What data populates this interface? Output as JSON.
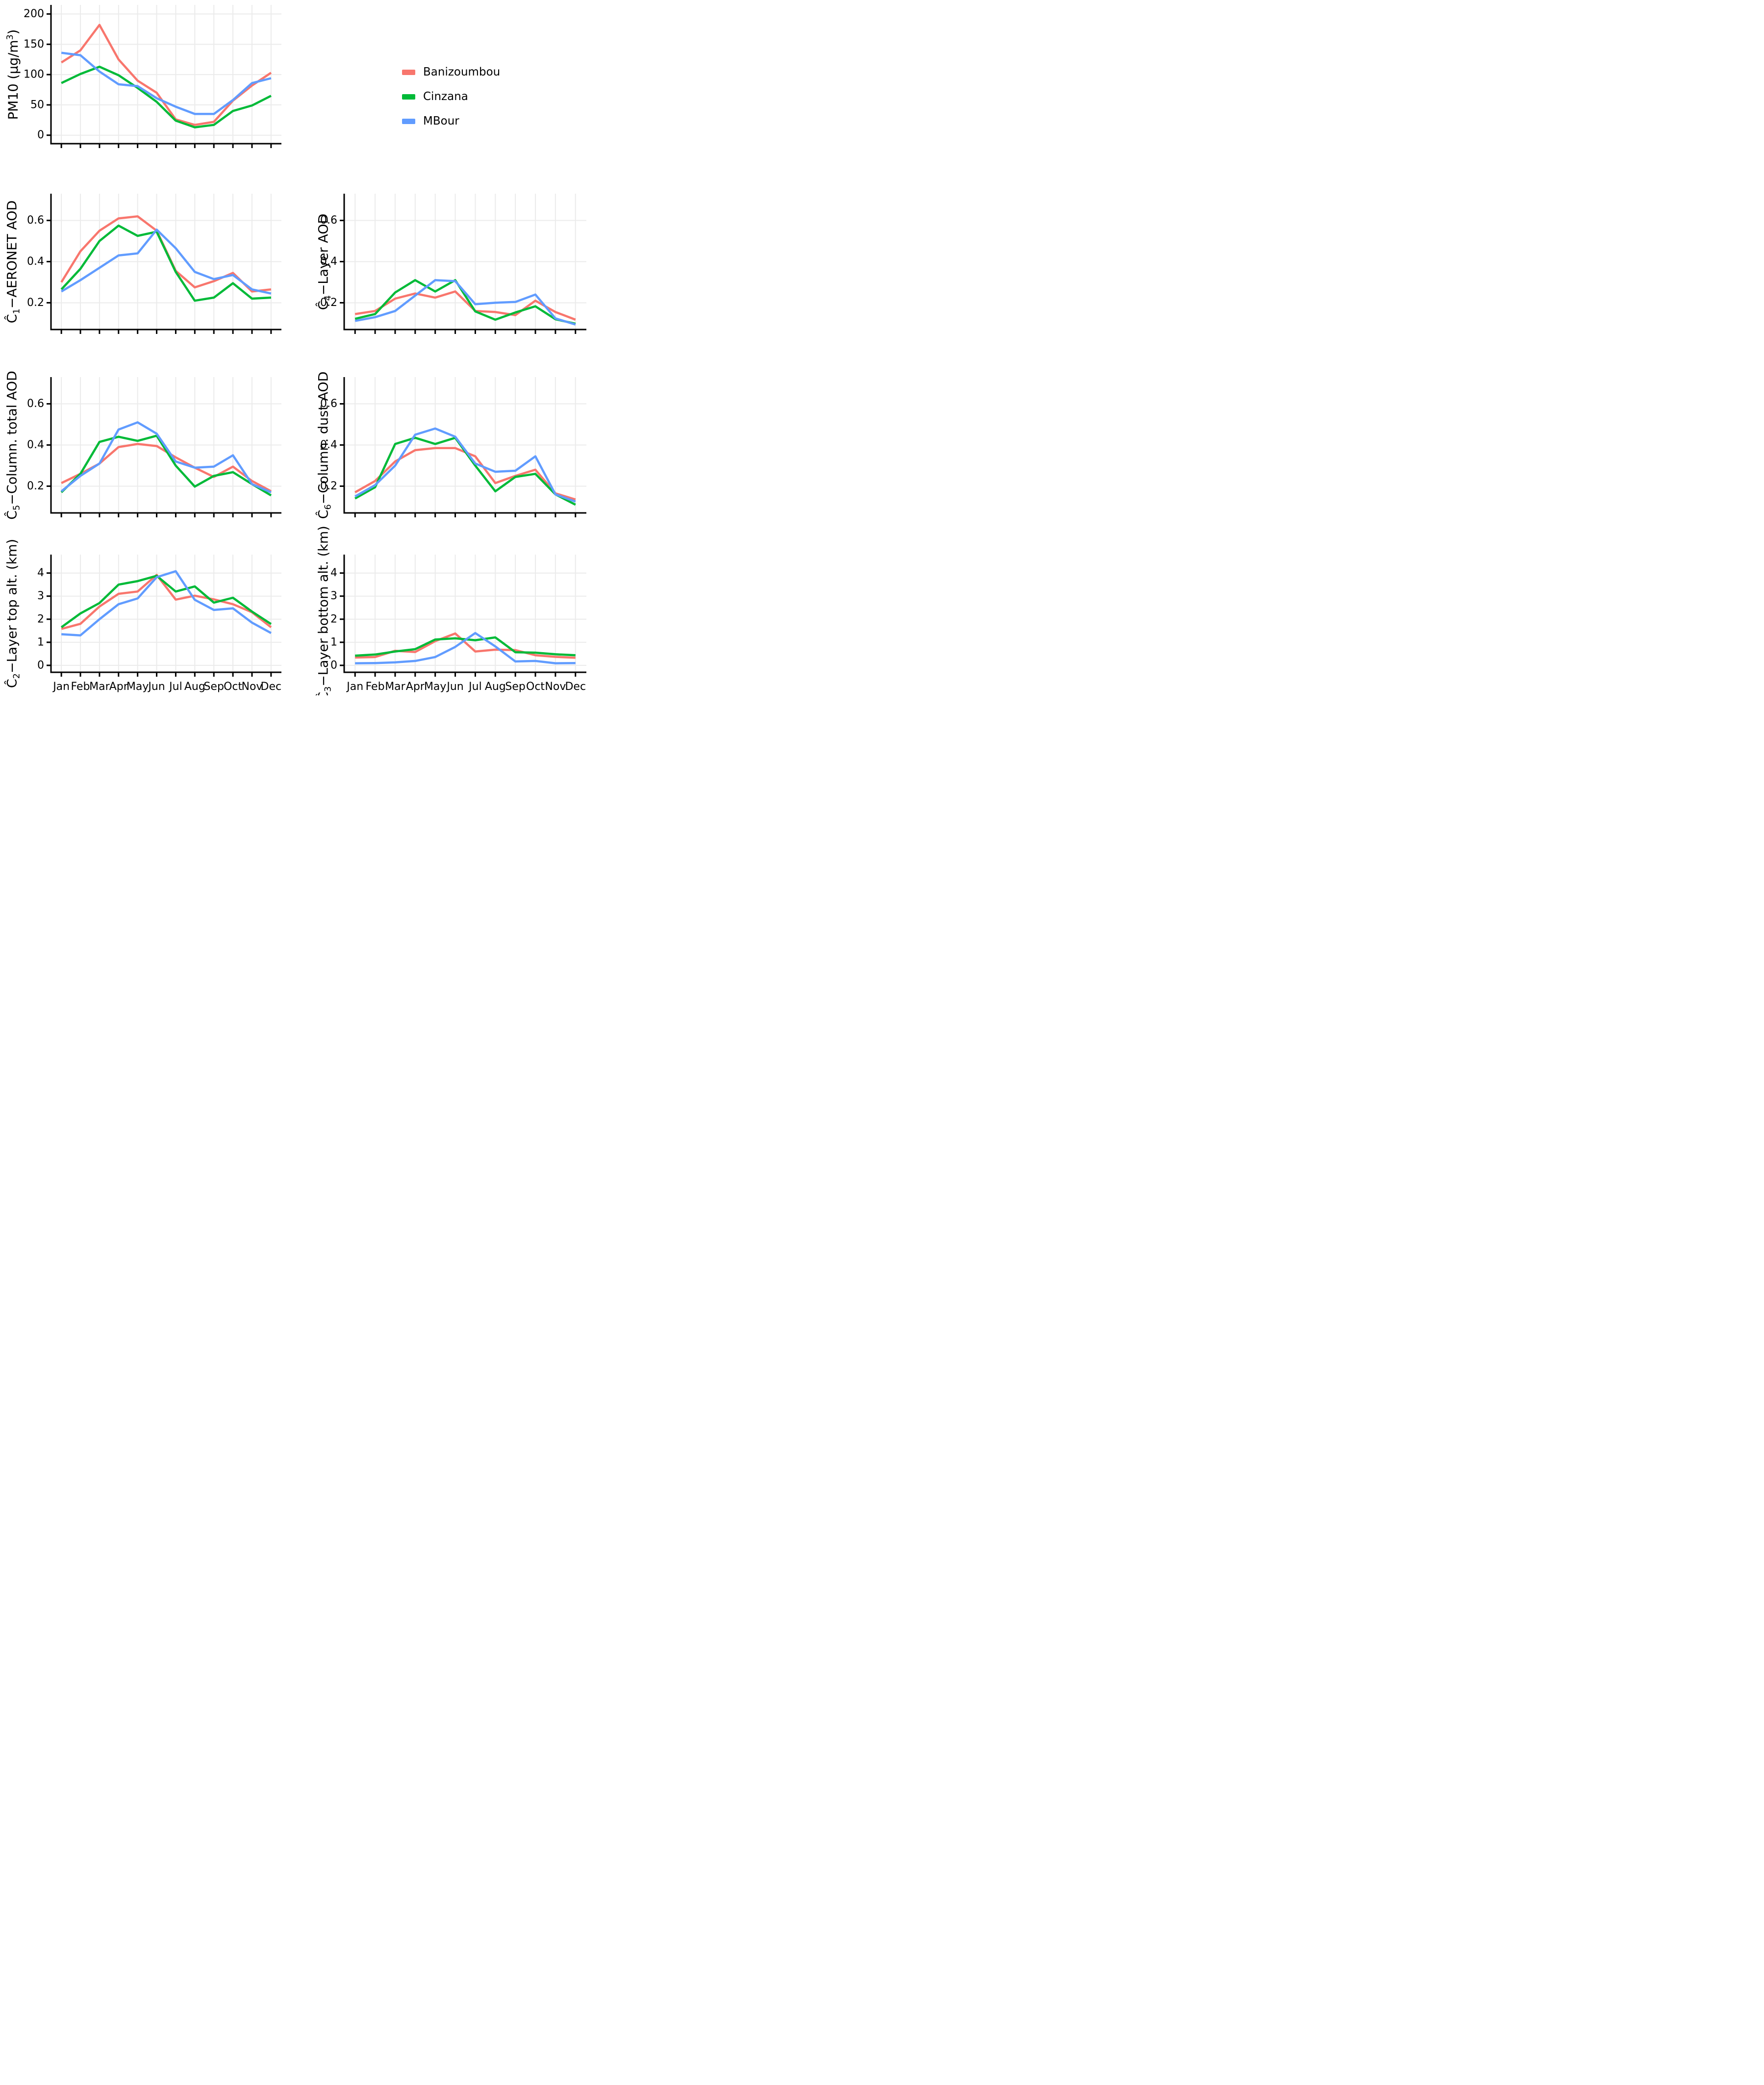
{
  "page": {
    "background": "#FFFFFF"
  },
  "months": [
    "Jan",
    "Feb",
    "Mar",
    "Apr",
    "May",
    "Jun",
    "Jul",
    "Aug",
    "Sep",
    "Oct",
    "Nov",
    "Dec"
  ],
  "legend": {
    "position": "top-right",
    "entries": [
      {
        "label": "Banizoumbou",
        "color": "#F8766D"
      },
      {
        "label": "Cinzana",
        "color": "#00BA38"
      },
      {
        "label": "MBour",
        "color": "#619CFF"
      }
    ]
  },
  "chart_data": {
    "type": "line",
    "x_categories": [
      "Jan",
      "Feb",
      "Mar",
      "Apr",
      "May",
      "Jun",
      "Jul",
      "Aug",
      "Sep",
      "Oct",
      "Nov",
      "Dec"
    ],
    "grid": "on",
    "panels": [
      {
        "id": "pm10",
        "ylabel_text": "PM10 (µg/m³)",
        "ylabel": {
          "segments": [
            {
              "text": "PM10 (µg/m"
            },
            {
              "text": "3",
              "sup": true
            },
            {
              "text": ")"
            }
          ]
        },
        "yticks": [
          {
            "v": 0,
            "label": "0"
          },
          {
            "v": 50,
            "label": "50"
          },
          {
            "v": 100,
            "label": "100"
          },
          {
            "v": 150,
            "label": "150"
          },
          {
            "v": 200,
            "label": "200"
          }
        ],
        "ylim": [
          -14,
          215
        ],
        "show_month_labels": false,
        "series": [
          {
            "name": "Banizoumbou",
            "color": "#F8766D",
            "values": [
              120,
              140,
              182,
              125,
              90,
              70,
              26,
              17,
              22,
              57,
              82,
              103
            ]
          },
          {
            "name": "Cinzana",
            "color": "#00BA38",
            "values": [
              86,
              101,
              113,
              99,
              78,
              55,
              24,
              13,
              17,
              40,
              49,
              65
            ]
          },
          {
            "name": "MBour",
            "color": "#619CFF",
            "values": [
              136,
              132,
              105,
              84,
              81,
              61,
              47,
              35,
              35,
              58,
              86,
              94
            ]
          }
        ]
      },
      {
        "id": "c1_aeronet_aod",
        "ylabel_text": "Ĉ₁−AERONET AOD",
        "ylabel": {
          "segments": [
            {
              "text": "Ĉ"
            },
            {
              "text": "1",
              "sub": true
            },
            {
              "text": "−AERONET AOD"
            }
          ]
        },
        "yticks": [
          {
            "v": 0.2,
            "label": "0.2"
          },
          {
            "v": 0.4,
            "label": "0.4"
          },
          {
            "v": 0.6,
            "label": "0.6"
          }
        ],
        "ylim": [
          0.07,
          0.73
        ],
        "show_month_labels": false,
        "series": [
          {
            "name": "Banizoumbou",
            "color": "#F8766D",
            "values": [
              0.3,
              0.45,
              0.55,
              0.61,
              0.62,
              0.55,
              0.355,
              0.275,
              0.305,
              0.345,
              0.255,
              0.265
            ]
          },
          {
            "name": "Cinzana",
            "color": "#00BA38",
            "values": [
              0.265,
              0.365,
              0.5,
              0.575,
              0.525,
              0.545,
              0.35,
              0.21,
              0.225,
              0.295,
              0.22,
              0.225
            ]
          },
          {
            "name": "MBour",
            "color": "#619CFF",
            "values": [
              0.255,
              0.31,
              0.37,
              0.43,
              0.44,
              0.555,
              0.465,
              0.35,
              0.315,
              0.335,
              0.265,
              0.245
            ]
          }
        ]
      },
      {
        "id": "c4_layer_aod",
        "ylabel_text": "Ĉ₄−Layer AOD",
        "ylabel": {
          "segments": [
            {
              "text": "Ĉ"
            },
            {
              "text": "4",
              "sub": true
            },
            {
              "text": "−Layer AOD"
            }
          ]
        },
        "yticks": [
          {
            "v": 0.2,
            "label": "0.2"
          },
          {
            "v": 0.4,
            "label": "0.4"
          },
          {
            "v": 0.6,
            "label": "0.6"
          }
        ],
        "ylim": [
          0.07,
          0.73
        ],
        "show_month_labels": false,
        "series": [
          {
            "name": "Banizoumbou",
            "color": "#F8766D",
            "values": [
              0.145,
              0.16,
              0.22,
              0.245,
              0.225,
              0.255,
              0.16,
              0.155,
              0.14,
              0.21,
              0.155,
              0.118
            ]
          },
          {
            "name": "Cinzana",
            "color": "#00BA38",
            "values": [
              0.122,
              0.145,
              0.25,
              0.31,
              0.255,
              0.31,
              0.158,
              0.118,
              0.153,
              0.183,
              0.12,
              0.098
            ]
          },
          {
            "name": "MBour",
            "color": "#619CFF",
            "values": [
              0.112,
              0.13,
              0.16,
              0.235,
              0.31,
              0.305,
              0.193,
              0.2,
              0.204,
              0.24,
              0.124,
              0.094
            ]
          }
        ]
      },
      {
        "id": "c5_column_total_aod",
        "ylabel_text": "Ĉ₅−Column. total AOD",
        "ylabel": {
          "segments": [
            {
              "text": "Ĉ"
            },
            {
              "text": "5",
              "sub": true
            },
            {
              "text": "−Column. total AOD"
            }
          ]
        },
        "yticks": [
          {
            "v": 0.2,
            "label": "0.2"
          },
          {
            "v": 0.4,
            "label": "0.4"
          },
          {
            "v": 0.6,
            "label": "0.6"
          }
        ],
        "ylim": [
          0.07,
          0.73
        ],
        "show_month_labels": false,
        "series": [
          {
            "name": "Banizoumbou",
            "color": "#F8766D",
            "values": [
              0.215,
              0.26,
              0.31,
              0.39,
              0.405,
              0.395,
              0.34,
              0.29,
              0.245,
              0.295,
              0.225,
              0.175
            ]
          },
          {
            "name": "Cinzana",
            "color": "#00BA38",
            "values": [
              0.17,
              0.26,
              0.415,
              0.44,
              0.42,
              0.445,
              0.3,
              0.198,
              0.25,
              0.268,
              0.21,
              0.155
            ]
          },
          {
            "name": "MBour",
            "color": "#619CFF",
            "values": [
              0.175,
              0.25,
              0.31,
              0.475,
              0.51,
              0.455,
              0.32,
              0.29,
              0.295,
              0.35,
              0.21,
              0.17
            ]
          }
        ]
      },
      {
        "id": "c6_column_dust_aod",
        "ylabel_text": "Ĉ₆−Column. dust AOD",
        "ylabel": {
          "segments": [
            {
              "text": "Ĉ"
            },
            {
              "text": "6",
              "sub": true
            },
            {
              "text": "−Column. dust AOD"
            }
          ]
        },
        "yticks": [
          {
            "v": 0.2,
            "label": "0.2"
          },
          {
            "v": 0.4,
            "label": "0.4"
          },
          {
            "v": 0.6,
            "label": "0.6"
          }
        ],
        "ylim": [
          0.07,
          0.73
        ],
        "show_month_labels": false,
        "series": [
          {
            "name": "Banizoumbou",
            "color": "#F8766D",
            "values": [
              0.17,
              0.225,
              0.32,
              0.375,
              0.385,
              0.385,
              0.345,
              0.215,
              0.25,
              0.28,
              0.165,
              0.135
            ]
          },
          {
            "name": "Cinzana",
            "color": "#00BA38",
            "values": [
              0.14,
              0.195,
              0.405,
              0.435,
              0.405,
              0.435,
              0.3,
              0.175,
              0.245,
              0.26,
              0.16,
              0.11
            ]
          },
          {
            "name": "MBour",
            "color": "#619CFF",
            "values": [
              0.15,
              0.205,
              0.3,
              0.45,
              0.48,
              0.44,
              0.31,
              0.27,
              0.275,
              0.345,
              0.16,
              0.125
            ]
          }
        ]
      },
      {
        "id": "c2_layer_top_alt",
        "ylabel_text": "Ĉ₂−Layer top alt. (km)",
        "ylabel": {
          "segments": [
            {
              "text": "Ĉ"
            },
            {
              "text": "2",
              "sub": true
            },
            {
              "text": "−Layer top alt. (km)"
            }
          ]
        },
        "yticks": [
          {
            "v": 0,
            "label": "0"
          },
          {
            "v": 1,
            "label": "1"
          },
          {
            "v": 2,
            "label": "2"
          },
          {
            "v": 3,
            "label": "3"
          },
          {
            "v": 4,
            "label": "4"
          }
        ],
        "ylim": [
          -0.3,
          4.8
        ],
        "show_month_labels": true,
        "series": [
          {
            "name": "Banizoumbou",
            "color": "#F8766D",
            "values": [
              1.58,
              1.8,
              2.55,
              3.1,
              3.2,
              3.92,
              2.85,
              3.02,
              2.86,
              2.65,
              2.3,
              1.65
            ]
          },
          {
            "name": "Cinzana",
            "color": "#00BA38",
            "values": [
              1.65,
              2.25,
              2.7,
              3.5,
              3.65,
              3.88,
              3.2,
              3.42,
              2.72,
              2.93,
              2.33,
              1.79
            ]
          },
          {
            "name": "MBour",
            "color": "#619CFF",
            "values": [
              1.35,
              1.3,
              2.0,
              2.65,
              2.9,
              3.82,
              4.08,
              2.84,
              2.4,
              2.47,
              1.85,
              1.4
            ]
          }
        ]
      },
      {
        "id": "c3_layer_bottom_alt",
        "ylabel_text": "Ĉ₃−Layer bottom alt. (km)",
        "ylabel": {
          "segments": [
            {
              "text": "Ĉ"
            },
            {
              "text": "3",
              "sub": true
            },
            {
              "text": "−Layer bottom alt. (km)"
            }
          ]
        },
        "yticks": [
          {
            "v": 0,
            "label": "0"
          },
          {
            "v": 1,
            "label": "1"
          },
          {
            "v": 2,
            "label": "2"
          },
          {
            "v": 3,
            "label": "3"
          },
          {
            "v": 4,
            "label": "4"
          }
        ],
        "ylim": [
          -0.3,
          4.8
        ],
        "show_month_labels": true,
        "series": [
          {
            "name": "Banizoumbou",
            "color": "#F8766D",
            "values": [
              0.34,
              0.36,
              0.63,
              0.58,
              1.05,
              1.38,
              0.6,
              0.68,
              0.66,
              0.44,
              0.37,
              0.33
            ]
          },
          {
            "name": "Cinzana",
            "color": "#00BA38",
            "values": [
              0.42,
              0.47,
              0.6,
              0.7,
              1.12,
              1.17,
              1.09,
              1.21,
              0.57,
              0.55,
              0.48,
              0.44
            ]
          },
          {
            "name": "MBour",
            "color": "#619CFF",
            "values": [
              0.09,
              0.1,
              0.13,
              0.19,
              0.36,
              0.8,
              1.4,
              0.82,
              0.17,
              0.19,
              0.09,
              0.1
            ]
          }
        ]
      }
    ]
  }
}
